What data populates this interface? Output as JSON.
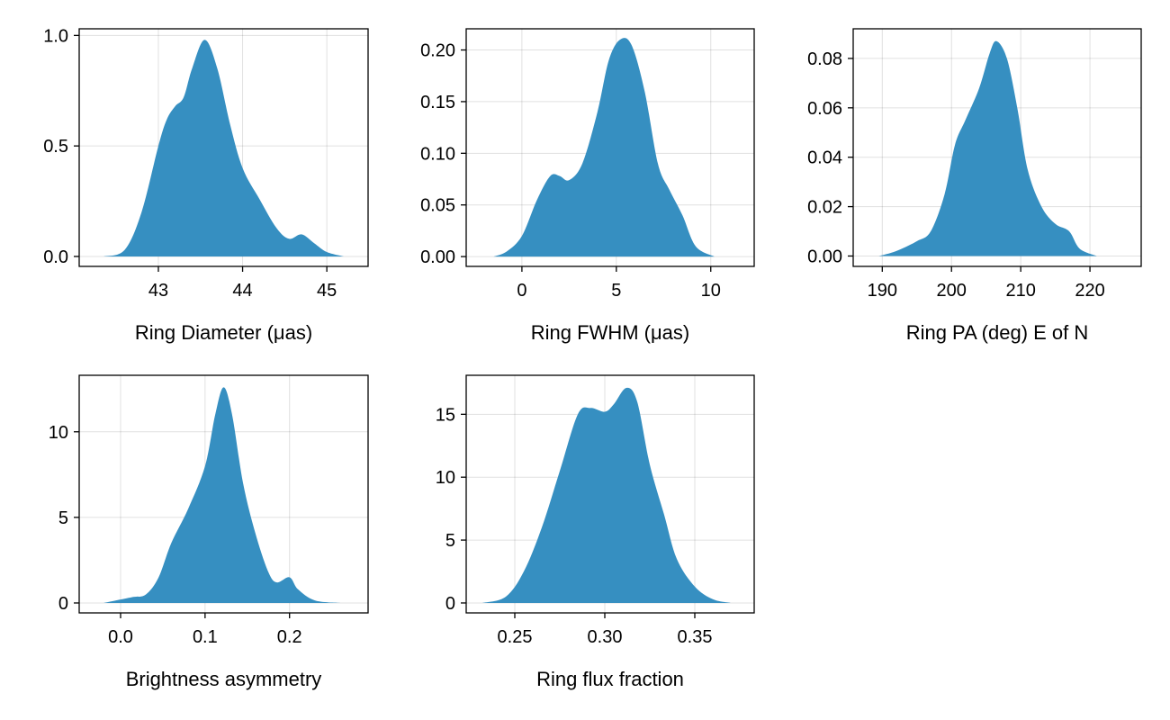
{
  "accent_color": "#368fc1",
  "chart_data": [
    {
      "type": "area",
      "xlabel": "Ring Diameter (μas)",
      "xlim": [
        42.06,
        45.49
      ],
      "ylim": [
        -0.045,
        1.03
      ],
      "xticks": [
        43,
        44,
        45
      ],
      "xtick_labels": [
        "43",
        "44",
        "45"
      ],
      "yticks": [
        0,
        0.5,
        1.0
      ],
      "ytick_labels": [
        "0.0",
        "0.5",
        "1.0"
      ],
      "x": [
        42.35,
        42.6,
        42.8,
        43.0,
        43.1,
        43.2,
        43.3,
        43.4,
        43.55,
        43.7,
        43.85,
        44.0,
        44.2,
        44.4,
        44.55,
        44.7,
        44.85,
        45.0,
        45.2
      ],
      "y": [
        0,
        0.03,
        0.2,
        0.5,
        0.62,
        0.68,
        0.72,
        0.85,
        0.98,
        0.85,
        0.6,
        0.4,
        0.26,
        0.13,
        0.08,
        0.1,
        0.06,
        0.02,
        0
      ]
    },
    {
      "type": "area",
      "xlabel": "Ring FWHM (μas)",
      "xlim": [
        -2.95,
        12.3
      ],
      "ylim": [
        -0.0095,
        0.2205
      ],
      "xticks": [
        0,
        5,
        10
      ],
      "xtick_labels": [
        "0",
        "5",
        "10"
      ],
      "yticks": [
        0,
        0.05,
        0.1,
        0.15,
        0.2
      ],
      "ytick_labels": [
        "0.00",
        "0.05",
        "0.10",
        "0.15",
        "0.20"
      ],
      "x": [
        -1.5,
        -0.8,
        0,
        0.8,
        1.5,
        2.0,
        2.5,
        3.2,
        4.0,
        4.6,
        5.2,
        5.8,
        6.5,
        7.2,
        7.8,
        8.5,
        9.2,
        10.2
      ],
      "y": [
        0,
        0.005,
        0.02,
        0.055,
        0.078,
        0.078,
        0.074,
        0.09,
        0.14,
        0.19,
        0.21,
        0.205,
        0.16,
        0.09,
        0.065,
        0.04,
        0.01,
        0
      ]
    },
    {
      "type": "area",
      "xlabel": "Ring PA (deg) E of N",
      "xlim": [
        185.8,
        227.4
      ],
      "ylim": [
        -0.0042,
        0.092
      ],
      "xticks": [
        190,
        200,
        210,
        220
      ],
      "xtick_labels": [
        "190",
        "200",
        "210",
        "220"
      ],
      "yticks": [
        0,
        0.02,
        0.04,
        0.06,
        0.08
      ],
      "ytick_labels": [
        "0.00",
        "0.02",
        "0.04",
        "0.06",
        "0.08"
      ],
      "x": [
        189.5,
        192,
        195,
        197,
        199,
        200.5,
        202,
        204,
        205.5,
        206.5,
        208,
        209.5,
        211,
        213,
        215,
        217,
        218.5,
        221
      ],
      "y": [
        0,
        0.002,
        0.006,
        0.01,
        0.025,
        0.045,
        0.055,
        0.068,
        0.082,
        0.087,
        0.08,
        0.06,
        0.035,
        0.02,
        0.013,
        0.01,
        0.003,
        0
      ]
    },
    {
      "type": "area",
      "xlabel": "Brightness asymmetry",
      "xlim": [
        -0.049,
        0.293
      ],
      "ylim": [
        -0.58,
        13.3
      ],
      "xticks": [
        0,
        0.1,
        0.2
      ],
      "xtick_labels": [
        "0.0",
        "0.1",
        "0.2"
      ],
      "yticks": [
        0,
        5,
        10
      ],
      "ytick_labels": [
        "0",
        "5",
        "10"
      ],
      "x": [
        -0.02,
        0.0,
        0.015,
        0.03,
        0.045,
        0.06,
        0.08,
        0.1,
        0.112,
        0.122,
        0.132,
        0.145,
        0.16,
        0.175,
        0.185,
        0.2,
        0.21,
        0.23,
        0.26
      ],
      "y": [
        0,
        0.2,
        0.35,
        0.5,
        1.5,
        3.5,
        5.5,
        8,
        11,
        12.6,
        11,
        7,
        4,
        1.8,
        1.2,
        1.5,
        0.8,
        0.15,
        0
      ]
    },
    {
      "type": "area",
      "xlabel": "Ring flux fraction",
      "xlim": [
        0.223,
        0.383
      ],
      "ylim": [
        -0.79,
        18.1
      ],
      "xticks": [
        0.25,
        0.3,
        0.35
      ],
      "xtick_labels": [
        "0.25",
        "0.30",
        "0.35"
      ],
      "yticks": [
        0,
        5,
        10,
        15
      ],
      "ytick_labels": [
        "0",
        "5",
        "10",
        "15"
      ],
      "x": [
        0.232,
        0.245,
        0.255,
        0.265,
        0.275,
        0.285,
        0.292,
        0.3,
        0.305,
        0.312,
        0.318,
        0.325,
        0.333,
        0.34,
        0.35,
        0.36,
        0.37
      ],
      "y": [
        0,
        0.5,
        2.5,
        6,
        10.5,
        15,
        15.5,
        15.2,
        15.8,
        17.1,
        16,
        11,
        7,
        3.5,
        1.3,
        0.3,
        0
      ]
    }
  ]
}
